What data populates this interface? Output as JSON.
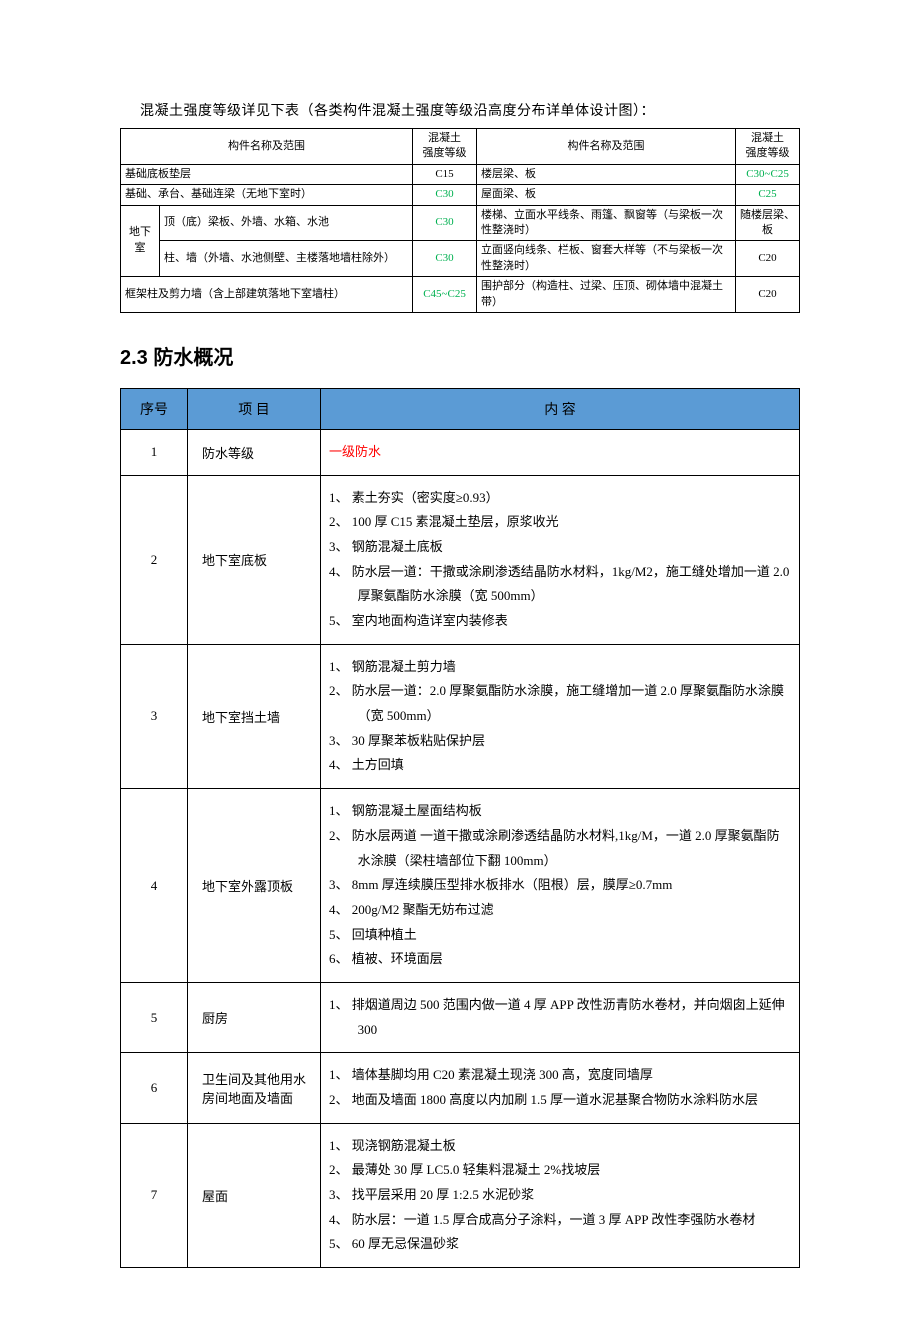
{
  "intro": "混凝土强度等级详见下表（各类构件混凝土强度等级沿高度分布详单体设计图）：",
  "t1": {
    "headers": {
      "name": "构件名称及范围",
      "grade": "混凝土\n强度等级"
    },
    "rows_left": [
      {
        "name": "基础底板垫层",
        "grade": "C15",
        "grade_green": false,
        "span_full": true
      },
      {
        "name": "基础、承台、基础连梁（无地下室时）",
        "grade": "C30",
        "grade_green": true,
        "span_full": true
      },
      {
        "name_prefix": "地下室",
        "name": "顶（底）梁板、外墙、水箱、水池",
        "grade": "C30",
        "grade_green": true,
        "rowspan": 2
      },
      {
        "name": "柱、墙（外墙、水池侧壁、主楼落地墙柱除外）",
        "grade": "C30",
        "grade_green": true
      },
      {
        "name": "框架柱及剪力墙（含上部建筑落地下室墙柱）",
        "grade": "C45~C25",
        "grade_green": true,
        "span_full": true
      }
    ],
    "rows_right": [
      {
        "name": "楼层梁、板",
        "grade": "C30~C25",
        "grade_green": true
      },
      {
        "name": "屋面梁、板",
        "grade": "C25",
        "grade_green": true
      },
      {
        "name": "楼梯、立面水平线条、雨篷、飘窗等（与梁板一次性整浇时）",
        "grade": "随楼层梁、板",
        "grade_green": false
      },
      {
        "name": "立面竖向线条、栏板、窗套大样等（不与梁板一次性整浇时）",
        "grade": "C20",
        "grade_green": false
      },
      {
        "name": "围护部分（构造柱、过梁、压顶、砌体墙中混凝土带）",
        "grade": "C20",
        "grade_green": false
      }
    ]
  },
  "section_title": "2.3 防水概况",
  "t2": {
    "headers": {
      "seq": "序号",
      "item": "项    目",
      "content": "内        容"
    },
    "header_bg": "#5b9bd5",
    "rows": [
      {
        "seq": "1",
        "item": "防水等级",
        "content_red": "一级防水"
      },
      {
        "seq": "2",
        "item": "地下室底板",
        "lines": [
          "1、 素土夯实（密实度≥0.93）",
          "2、 100 厚 C15 素混凝土垫层，原浆收光",
          "3、 钢筋混凝土底板",
          "4、 防水层一道：干撒或涂刷渗透结晶防水材料，1kg/M2，施工缝处增加一道 2.0 厚聚氨酯防水涂膜（宽 500mm）",
          "5、 室内地面构造详室内装修表"
        ]
      },
      {
        "seq": "3",
        "item": "地下室挡土墙",
        "lines": [
          "1、 钢筋混凝土剪力墙",
          "2、 防水层一道：2.0 厚聚氨酯防水涂膜，施工缝增加一道 2.0 厚聚氨酯防水涂膜（宽 500mm）",
          "3、 30 厚聚苯板粘贴保护层",
          "4、 土方回填"
        ]
      },
      {
        "seq": "4",
        "item": "地下室外露顶板",
        "lines": [
          "1、 钢筋混凝土屋面结构板",
          "2、 防水层两道 一道干撒或涂刷渗透结晶防水材料,1kg/M，一道 2.0 厚聚氨酯防水涂膜（梁柱墙部位下翻 100mm）",
          "3、 8mm 厚连续膜压型排水板排水（阻根）层，膜厚≥0.7mm",
          "4、 200g/M2 聚酯无妨布过滤",
          "5、 回填种植土",
          "6、 植被、环境面层"
        ]
      },
      {
        "seq": "5",
        "item": "厨房",
        "lines": [
          "1、 排烟道周边 500 范围内做一道 4 厚 APP 改性沥青防水卷材，并向烟囱上延伸 300"
        ]
      },
      {
        "seq": "6",
        "item": "卫生间及其他用水房间地面及墙面",
        "lines": [
          "1、 墙体基脚均用 C20 素混凝土现浇 300 高，宽度同墙厚",
          "2、 地面及墙面 1800 高度以内加刷 1.5 厚一道水泥基聚合物防水涂料防水层"
        ]
      },
      {
        "seq": "7",
        "item": "屋面",
        "lines": [
          "1、 现浇钢筋混凝土板",
          "2、 最薄处 30 厚 LC5.0 轻集料混凝土 2%找坡层",
          "3、 找平层采用 20 厚 1:2.5 水泥砂浆",
          "4、 防水层：一道 1.5 厚合成高分子涂料，一道 3 厚 APP 改性李强防水卷材",
          "5、 60 厚无忌保温砂浆"
        ]
      }
    ]
  }
}
